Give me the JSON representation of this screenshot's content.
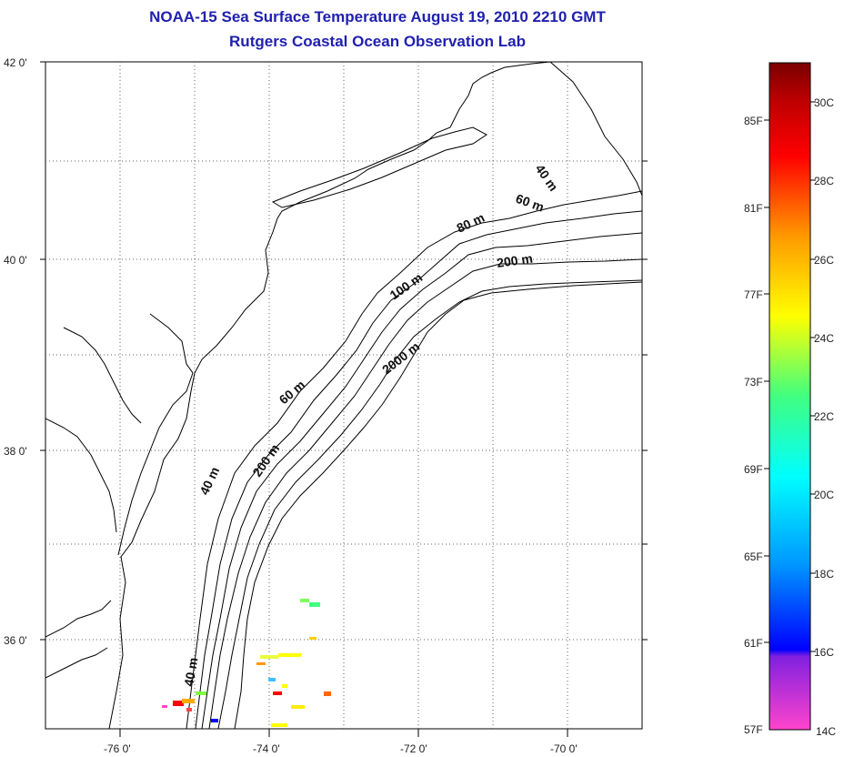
{
  "title": {
    "line1": "NOAA-15 Sea Surface Temperature August 19, 2010 2210 GMT",
    "line2": "Rutgers Coastal Ocean Observation Lab"
  },
  "map": {
    "lat_labels": [
      "42 0'",
      "40 0'",
      "38 0'",
      "36 0'"
    ],
    "lon_labels": [
      "-76 0'",
      "-74 0'",
      "-72 0'",
      "-70 0'"
    ],
    "bathymetry_labels": [
      "40 m",
      "60 m",
      "80 m",
      "200 m",
      "100 m",
      "2000 m",
      "60 m",
      "40 m",
      "200 m",
      "40 m"
    ]
  },
  "colorbar": {
    "fahrenheit_labels": [
      "85F",
      "81F",
      "77F",
      "73F",
      "69F",
      "65F",
      "61F",
      "57F"
    ],
    "celsius_labels": [
      "30C",
      "28C",
      "26C",
      "24C",
      "22C",
      "20C",
      "18C",
      "16C",
      "14C"
    ],
    "gradient_colors": [
      "#ff44cc",
      "#8020e0",
      "#0000ff",
      "#0099ff",
      "#00ffff",
      "#40ff80",
      "#ffff00",
      "#ff9900",
      "#ff0000",
      "#c00000",
      "#7a0000"
    ]
  }
}
